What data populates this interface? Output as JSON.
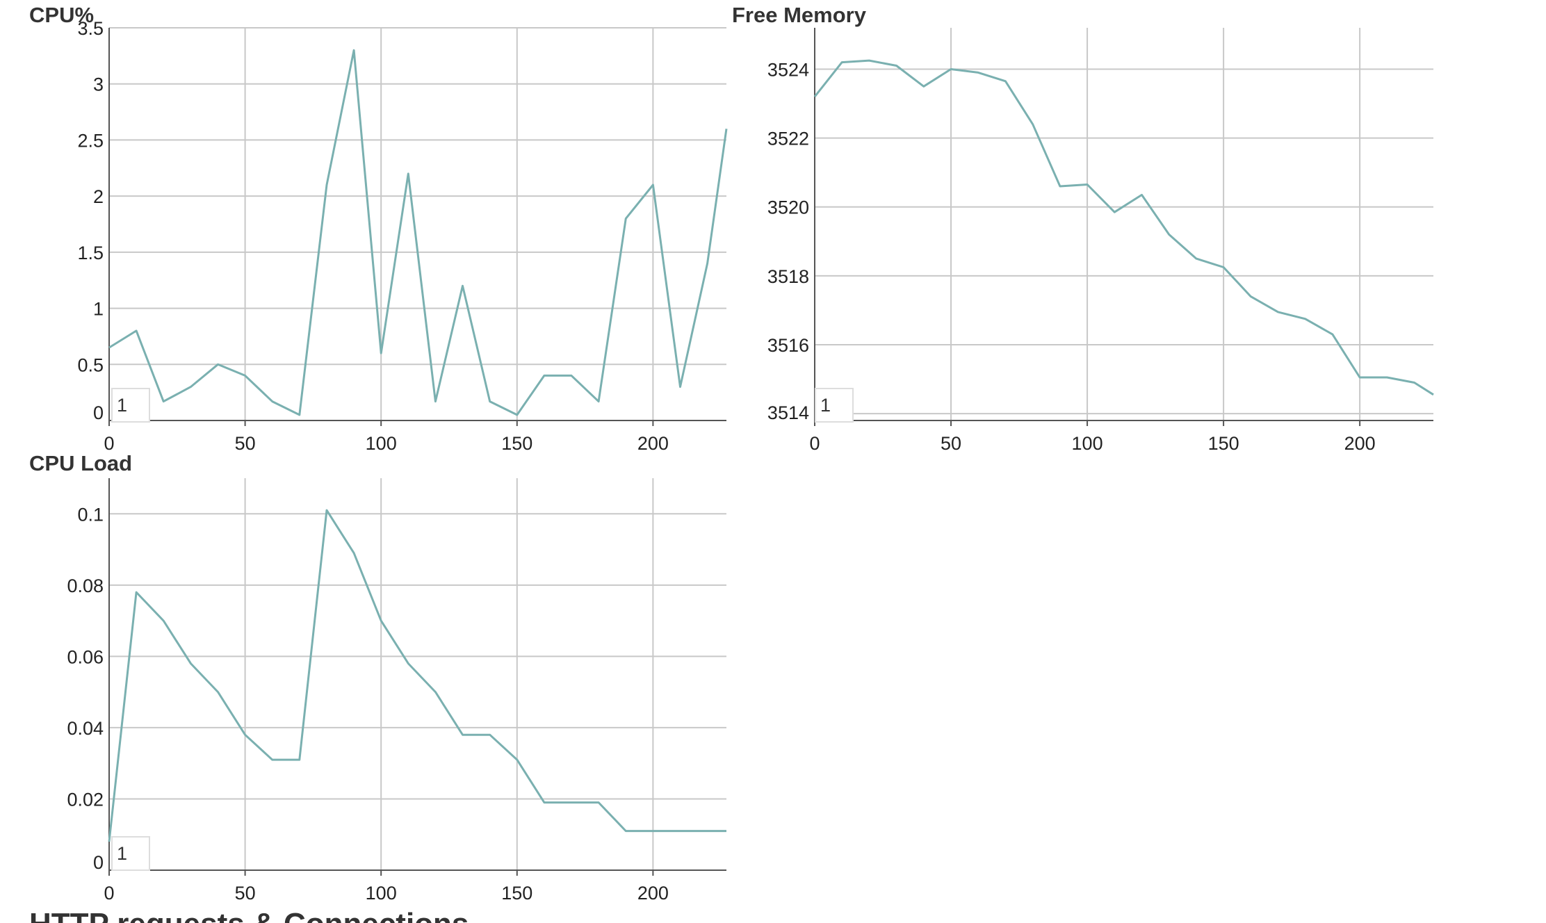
{
  "charts": [
    {
      "key": "cpu_percent",
      "title": "CPU%",
      "legend_label": "1",
      "line_color": "#7ab0b0"
    },
    {
      "key": "free_memory",
      "title": "Free Memory",
      "legend_label": "1",
      "line_color": "#7ab0b0"
    },
    {
      "key": "cpu_load",
      "title": "CPU Load",
      "legend_label": "1",
      "line_color": "#7ab0b0"
    }
  ],
  "footer_fragment": "HTTP requests & Connections",
  "chart_data": [
    {
      "type": "line",
      "title": "CPU%",
      "x": [
        0,
        10,
        20,
        30,
        40,
        50,
        60,
        70,
        80,
        90,
        100,
        110,
        120,
        130,
        140,
        150,
        160,
        170,
        180,
        190,
        200,
        210,
        220,
        227
      ],
      "series": [
        {
          "name": "1",
          "values": [
            0.65,
            0.8,
            0.17,
            0.3,
            0.5,
            0.4,
            0.17,
            0.05,
            2.1,
            3.3,
            0.6,
            2.2,
            0.17,
            1.2,
            0.17,
            0.05,
            0.4,
            0.4,
            0.17,
            1.8,
            2.1,
            0.3,
            1.4,
            2.6
          ]
        }
      ],
      "xlim": [
        0,
        227
      ],
      "ylim": [
        0,
        3.5
      ],
      "x_ticks": [
        0,
        50,
        100,
        150,
        200
      ],
      "y_ticks": [
        0,
        0.5,
        1,
        1.5,
        2,
        2.5,
        3,
        3.5
      ],
      "grid": true,
      "legend": "bottom-left"
    },
    {
      "type": "line",
      "title": "Free Memory",
      "x": [
        0,
        10,
        20,
        30,
        40,
        50,
        60,
        70,
        80,
        90,
        100,
        110,
        120,
        130,
        140,
        150,
        160,
        170,
        180,
        190,
        200,
        210,
        220,
        227
      ],
      "series": [
        {
          "name": "1",
          "values": [
            3523.2,
            3524.2,
            3524.25,
            3524.1,
            3523.5,
            3524.0,
            3523.9,
            3523.65,
            3522.4,
            3520.6,
            3520.65,
            3519.85,
            3520.35,
            3519.2,
            3518.5,
            3518.25,
            3517.4,
            3516.95,
            3516.75,
            3516.3,
            3515.05,
            3515.05,
            3514.9,
            3514.55
          ]
        }
      ],
      "xlim": [
        0,
        227
      ],
      "ylim": [
        3513.8,
        3525.2
      ],
      "x_ticks": [
        0,
        50,
        100,
        150,
        200
      ],
      "y_ticks": [
        3514,
        3516,
        3518,
        3520,
        3522,
        3524
      ],
      "grid": true,
      "legend": "bottom-left"
    },
    {
      "type": "line",
      "title": "CPU Load",
      "x": [
        0,
        10,
        20,
        30,
        40,
        50,
        60,
        70,
        80,
        90,
        100,
        110,
        120,
        130,
        140,
        150,
        160,
        170,
        180,
        190,
        200,
        210,
        220,
        227
      ],
      "series": [
        {
          "name": "1",
          "values": [
            0.008,
            0.078,
            0.07,
            0.058,
            0.05,
            0.038,
            0.031,
            0.031,
            0.101,
            0.089,
            0.07,
            0.058,
            0.05,
            0.038,
            0.038,
            0.031,
            0.019,
            0.019,
            0.019,
            0.011,
            0.011,
            0.011,
            0.011,
            0.011
          ]
        }
      ],
      "xlim": [
        0,
        227
      ],
      "ylim": [
        0,
        0.11
      ],
      "x_ticks": [
        0,
        50,
        100,
        150,
        200
      ],
      "y_ticks": [
        0,
        0.02,
        0.04,
        0.06,
        0.08,
        0.1
      ],
      "grid": true,
      "legend": "bottom-left"
    }
  ]
}
